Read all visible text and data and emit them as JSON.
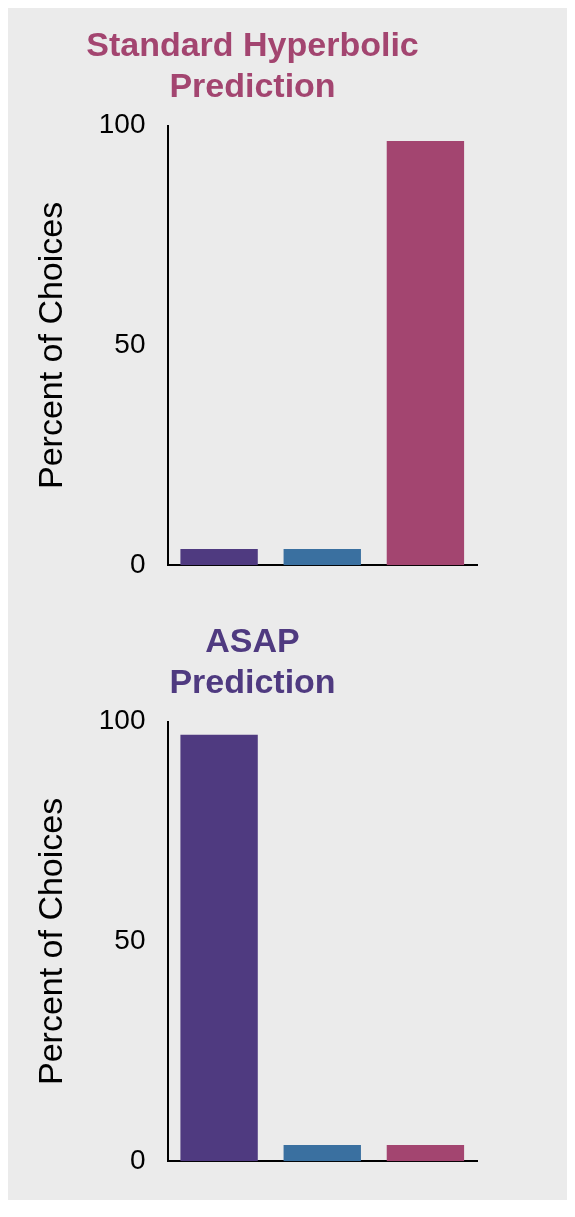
{
  "chart_data": [
    {
      "type": "bar",
      "title": [
        "Standard Hyperbolic",
        "Prediction"
      ],
      "ylabel": "Percent of Choices",
      "categories": [
        null,
        null,
        null
      ],
      "values": [
        3.7,
        3.7,
        96.5
      ],
      "colors": [
        "#4f3a80",
        "#3a70a0",
        "#a34570"
      ],
      "ylim": [
        0,
        100
      ],
      "yticks": [
        0,
        50,
        100
      ],
      "grid": false,
      "legend": false
    },
    {
      "type": "bar",
      "title": [
        "ASAP",
        "Prediction"
      ],
      "ylabel": "Percent of Choices",
      "categories": [
        null,
        null,
        null
      ],
      "values": [
        97,
        3.7,
        3.7
      ],
      "colors": [
        "#4f3a80",
        "#3a70a0",
        "#a34570"
      ],
      "ylim": [
        0,
        100
      ],
      "yticks": [
        0,
        50,
        100
      ],
      "grid": false,
      "legend": false
    }
  ]
}
